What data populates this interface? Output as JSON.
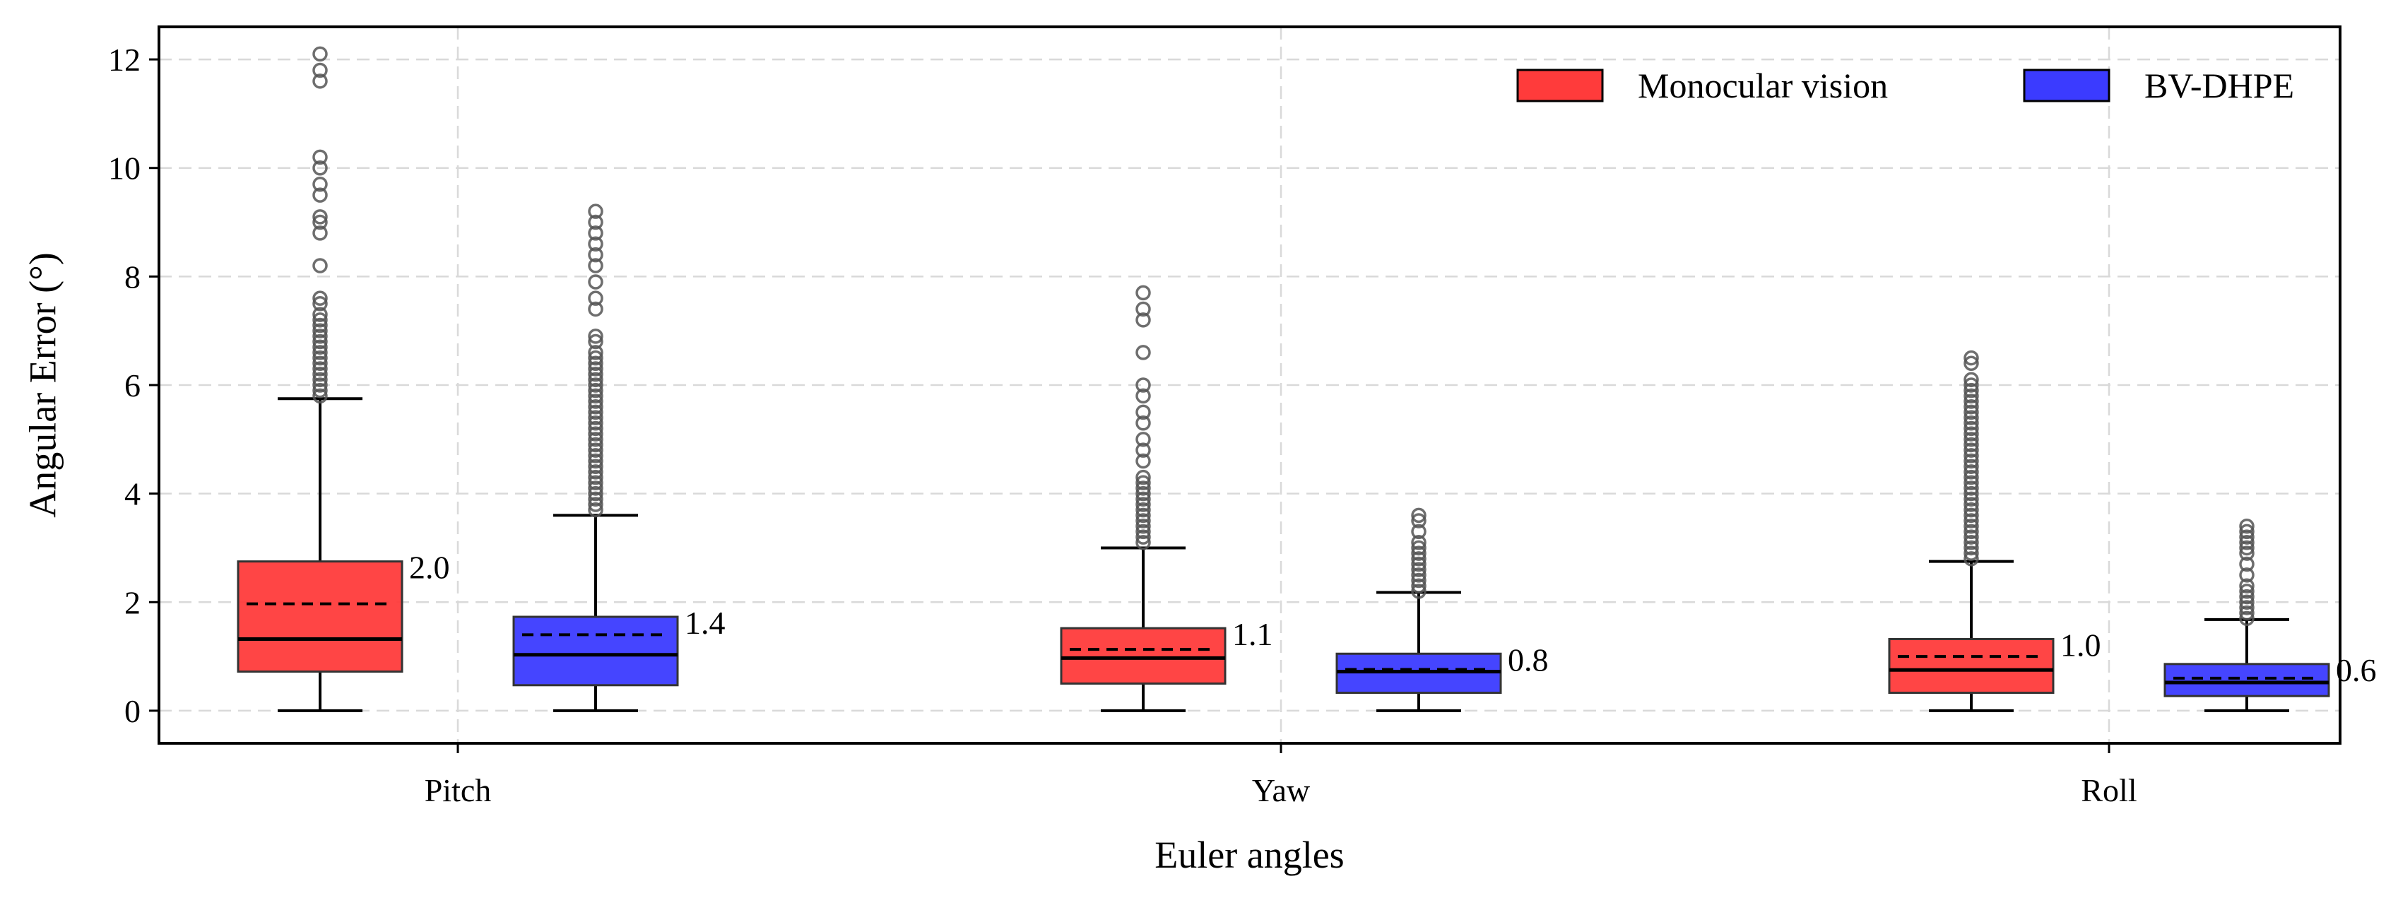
{
  "chart_data": {
    "type": "box",
    "xlabel": "Euler angles",
    "ylabel": "Angular Error (°)",
    "ylim": [
      -0.6,
      12.6
    ],
    "yticks": [
      0,
      2,
      4,
      6,
      8,
      10,
      12
    ],
    "grid": true,
    "legend_position": "top-right",
    "categories": [
      "Pitch",
      "Yaw",
      "Roll"
    ],
    "series": [
      {
        "name": "Monocular vision",
        "color": "#ff3b3b",
        "boxes": [
          {
            "category": "Pitch",
            "min": 0,
            "q1": 0.72,
            "median": 1.32,
            "q3": 2.75,
            "whisker_high": 5.75,
            "mean": 1.97,
            "mean_label": "2.0",
            "outliers": [
              5.8,
              5.9,
              6.0,
              6.1,
              6.2,
              6.3,
              6.4,
              6.5,
              6.6,
              6.7,
              6.8,
              6.9,
              7.0,
              7.1,
              7.2,
              7.3,
              7.5,
              7.6,
              8.2,
              8.8,
              9.0,
              9.1,
              9.5,
              9.7,
              10.0,
              10.2,
              11.6,
              11.8,
              12.1
            ]
          },
          {
            "category": "Yaw",
            "min": 0,
            "q1": 0.5,
            "median": 0.97,
            "q3": 1.52,
            "whisker_high": 3.0,
            "mean": 1.13,
            "mean_label": "1.1",
            "outliers": [
              3.1,
              3.2,
              3.3,
              3.4,
              3.5,
              3.6,
              3.7,
              3.8,
              3.9,
              4.0,
              4.1,
              4.2,
              4.3,
              4.6,
              4.8,
              5.0,
              5.3,
              5.5,
              5.8,
              6.0,
              6.6,
              7.2,
              7.4,
              7.7
            ]
          },
          {
            "category": "Roll",
            "min": 0,
            "q1": 0.33,
            "median": 0.75,
            "q3": 1.32,
            "whisker_high": 2.75,
            "mean": 1.0,
            "mean_label": "1.0",
            "outliers": [
              2.8,
              2.9,
              3.0,
              3.1,
              3.2,
              3.3,
              3.4,
              3.5,
              3.6,
              3.7,
              3.8,
              3.9,
              4.0,
              4.1,
              4.2,
              4.3,
              4.4,
              4.5,
              4.6,
              4.7,
              4.8,
              4.9,
              5.0,
              5.1,
              5.2,
              5.3,
              5.4,
              5.5,
              5.6,
              5.7,
              5.8,
              5.9,
              6.0,
              6.1,
              6.4,
              6.5
            ]
          }
        ]
      },
      {
        "name": "BV-DHPE",
        "color": "#3b3bff",
        "boxes": [
          {
            "category": "Pitch",
            "min": 0,
            "q1": 0.47,
            "median": 1.03,
            "q3": 1.73,
            "whisker_high": 3.6,
            "mean": 1.4,
            "mean_label": "1.4",
            "outliers": [
              3.7,
              3.8,
              3.9,
              4.0,
              4.1,
              4.2,
              4.3,
              4.4,
              4.5,
              4.6,
              4.7,
              4.8,
              4.9,
              5.0,
              5.1,
              5.2,
              5.3,
              5.4,
              5.5,
              5.6,
              5.7,
              5.8,
              5.9,
              6.0,
              6.1,
              6.2,
              6.3,
              6.4,
              6.5,
              6.6,
              6.8,
              6.9,
              7.4,
              7.6,
              7.9,
              8.2,
              8.4,
              8.6,
              8.8,
              9.0,
              9.2
            ]
          },
          {
            "category": "Yaw",
            "min": 0,
            "q1": 0.33,
            "median": 0.72,
            "q3": 1.05,
            "whisker_high": 2.18,
            "mean": 0.76,
            "mean_label": "0.8",
            "outliers": [
              2.2,
              2.3,
              2.4,
              2.5,
              2.6,
              2.7,
              2.8,
              2.9,
              3.0,
              3.1,
              3.3,
              3.5,
              3.6
            ]
          },
          {
            "category": "Roll",
            "min": 0,
            "q1": 0.27,
            "median": 0.52,
            "q3": 0.86,
            "whisker_high": 1.68,
            "mean": 0.6,
            "mean_label": "0.6",
            "outliers": [
              1.7,
              1.8,
              1.9,
              2.0,
              2.1,
              2.2,
              2.3,
              2.5,
              2.7,
              2.9,
              3.0,
              3.1,
              3.2,
              3.3,
              3.4
            ]
          }
        ]
      }
    ]
  }
}
